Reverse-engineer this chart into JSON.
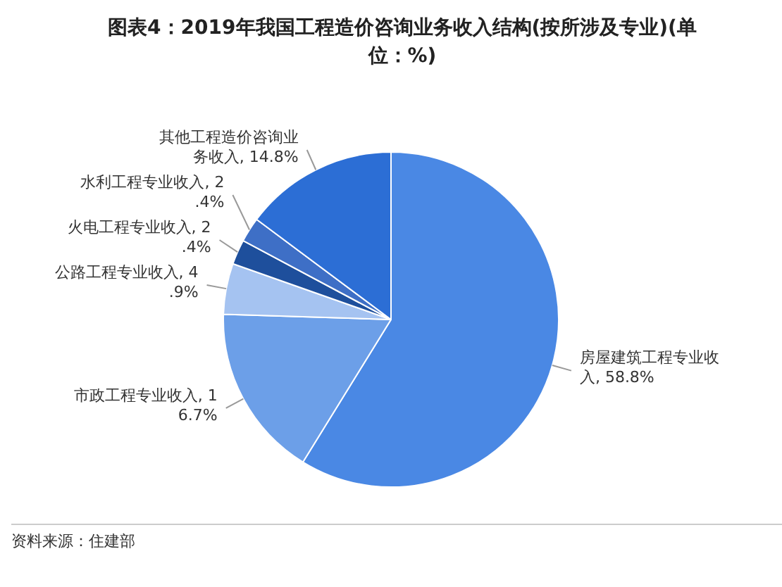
{
  "chart_data": {
    "type": "pie",
    "title": "图表4：2019年我国工程造价咨询业务收入结构(按所涉及专业)(单位：%)",
    "categories": [
      "房屋建筑工程专业收入",
      "市政工程专业收入",
      "公路工程专业收入",
      "火电工程专业收入",
      "水利工程专业收入",
      "其他工程造价咨询业务收入"
    ],
    "values": [
      58.8,
      16.7,
      4.9,
      2.4,
      2.4,
      14.8
    ],
    "value_labels": [
      "58.8%",
      "16.7%",
      "4.9%",
      "2.4%",
      "2.4%",
      "14.8%"
    ],
    "colors": [
      "#4a88e4",
      "#6c9fe8",
      "#a5c3f1",
      "#1e4f9c",
      "#3e6fc6",
      "#2c6ed5"
    ],
    "legend": false,
    "annotations": [
      "资料来源：住建部"
    ]
  }
}
